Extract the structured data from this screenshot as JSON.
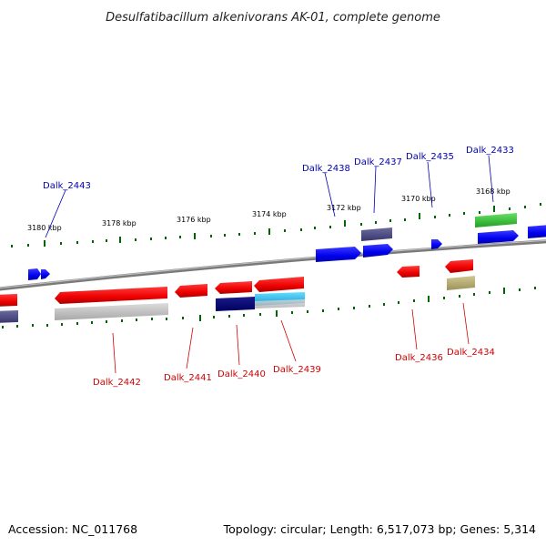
{
  "title": "Desulfatibacillum alkenivorans AK-01, complete genome",
  "footer": {
    "accession": "Accession: NC_011768",
    "summary": "Topology: circular; Length: 6,517,073 bp; Genes: 5,314"
  },
  "scale_labels": [
    "3180 kbp",
    "3178 kbp",
    "3176 kbp",
    "3174 kbp",
    "3172 kbp",
    "3170 kbp",
    "3168 kbp"
  ],
  "gene_labels_top": [
    "Dalk_2443",
    "Dalk_2438",
    "Dalk_2437",
    "Dalk_2435",
    "Dalk_2433"
  ],
  "gene_labels_bottom": [
    "Dalk_2442",
    "Dalk_2441",
    "Dalk_2440",
    "Dalk_2439",
    "Dalk_2436",
    "Dalk_2434"
  ],
  "colors": {
    "forward_gene": "#0000ff",
    "reverse_gene": "#ff0000",
    "dark_navy": "#000080",
    "slate": "#4a4a8a",
    "cyan": "#33bbee",
    "green": "#33cc33",
    "khaki": "#b8b070",
    "gray": "#c0c0c0",
    "backbone": "#888888",
    "ticks": "#006600",
    "label_top": "#0000b0",
    "label_bottom": "#d00000"
  }
}
